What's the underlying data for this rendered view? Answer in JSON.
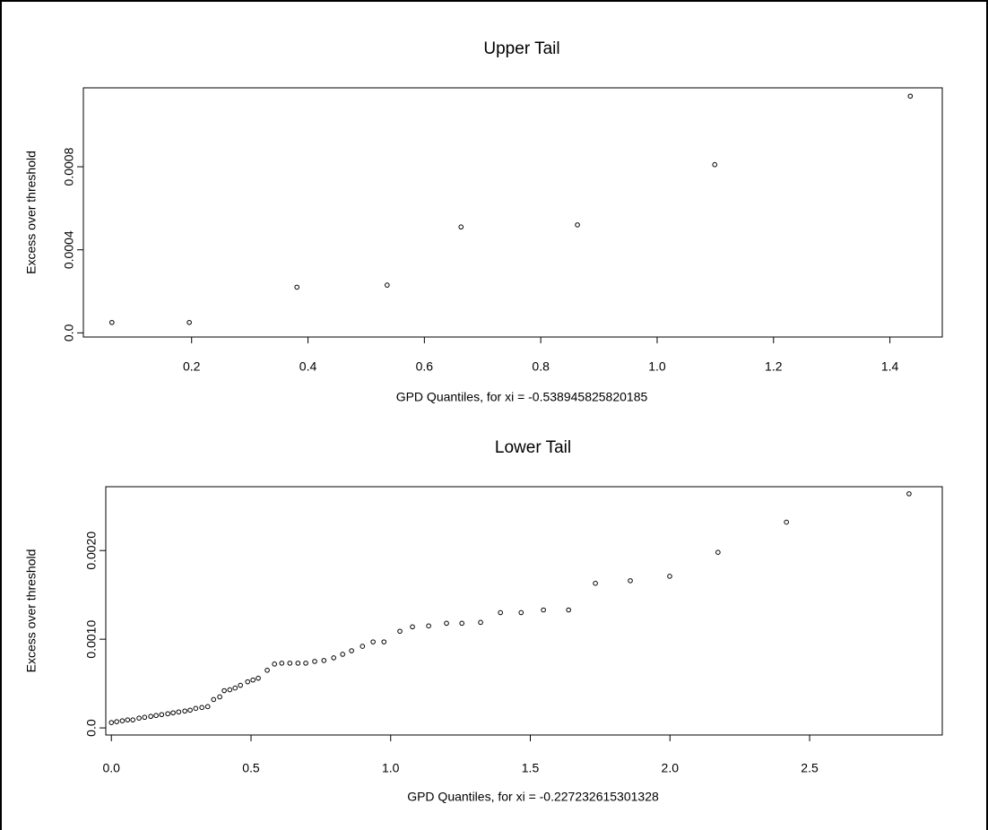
{
  "chart_data": [
    {
      "type": "scatter",
      "title": "Upper Tail",
      "xlabel": "GPD Quantiles, for xi = -0.538945825820185",
      "ylabel": "Excess over threshold",
      "x": [
        0.063,
        0.196,
        0.381,
        0.536,
        0.663,
        0.863,
        1.099,
        1.435
      ],
      "values": [
        5e-05,
        5e-05,
        0.00022,
        0.00023,
        0.00051,
        0.00052,
        0.00081,
        0.00114
      ],
      "xlim": [
        0.014,
        1.49
      ],
      "ylim": [
        -2e-05,
        0.00118
      ],
      "xticks": [
        0.2,
        0.4,
        0.6,
        0.8,
        {
          "value": 1,
          "label": "1.0"
        },
        1.2,
        1.4
      ],
      "yticks": [
        {
          "value": 0,
          "label": "0.0"
        },
        0.0004,
        0.0008
      ],
      "color": "#000000"
    },
    {
      "type": "scatter",
      "title": "Lower Tail",
      "xlabel": "GPD Quantiles, for xi = -0.227232615301328",
      "ylabel": "Excess over threshold",
      "x": [
        0,
        0.019,
        0.039,
        0.058,
        0.077,
        0.099,
        0.119,
        0.141,
        0.16,
        0.18,
        0.202,
        0.221,
        0.241,
        0.263,
        0.282,
        0.302,
        0.324,
        0.345,
        0.366,
        0.388,
        0.404,
        0.424,
        0.443,
        0.462,
        0.488,
        0.507,
        0.526,
        0.558,
        0.584,
        0.61,
        0.639,
        0.668,
        0.696,
        0.728,
        0.761,
        0.796,
        0.828,
        0.86,
        0.899,
        0.937,
        0.976,
        1.033,
        1.078,
        1.136,
        1.2,
        1.255,
        1.322,
        1.393,
        1.467,
        1.547,
        1.637,
        1.733,
        1.858,
        1.999,
        2.172,
        2.417,
        2.856
      ],
      "values": [
        6e-05,
        7e-05,
        8e-05,
        9e-05,
        9e-05,
        0.00011,
        0.00012,
        0.00013,
        0.00014,
        0.00015,
        0.00016,
        0.00017,
        0.00018,
        0.00019,
        0.0002,
        0.00022,
        0.00023,
        0.00024,
        0.00032,
        0.00035,
        0.00042,
        0.00043,
        0.00045,
        0.00048,
        0.00052,
        0.00054,
        0.00056,
        0.00065,
        0.00072,
        0.00073,
        0.00073,
        0.00073,
        0.00073,
        0.00075,
        0.00076,
        0.00079,
        0.00083,
        0.00087,
        0.00092,
        0.00097,
        0.00097,
        0.00109,
        0.00114,
        0.00115,
        0.00118,
        0.00118,
        0.00119,
        0.0013,
        0.0013,
        0.00133,
        0.00133,
        0.00163,
        0.00166,
        0.00171,
        0.00198,
        0.00232,
        0.00264
      ],
      "xlim": [
        -0.02,
        2.975
      ],
      "ylim": [
        -8e-05,
        0.00272
      ],
      "xticks": [
        {
          "value": 0,
          "label": "0.0"
        },
        0.5,
        {
          "value": 1,
          "label": "1.0"
        },
        1.5,
        {
          "value": 2,
          "label": "2.0"
        },
        2.5
      ],
      "yticks": [
        {
          "value": 0,
          "label": "0.0"
        },
        {
          "value": 0.001,
          "label": "0.0010"
        },
        {
          "value": 0.002,
          "label": "0.0020"
        }
      ],
      "color": "#000000"
    }
  ]
}
